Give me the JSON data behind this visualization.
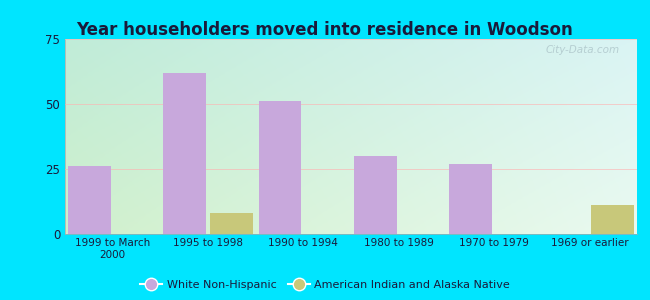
{
  "title": "Year householders moved into residence in Woodson",
  "categories": [
    "1999 to March\n2000",
    "1995 to 1998",
    "1990 to 1994",
    "1980 to 1989",
    "1970 to 1979",
    "1969 or earlier"
  ],
  "white_non_hispanic": [
    26,
    62,
    51,
    30,
    27,
    0
  ],
  "american_indian": [
    0,
    8,
    0,
    0,
    0,
    11
  ],
  "bar_color_white": "#c8a8dc",
  "bar_color_indian": "#c8c87a",
  "ylim": [
    0,
    75
  ],
  "yticks": [
    0,
    25,
    50,
    75
  ],
  "background_outer": "#00e5ff",
  "bg_color_topleft": "#c8f0e0",
  "bg_color_topright": "#e8f8f8",
  "bg_color_bottomleft": "#d8f0d0",
  "bg_color_bottomright": "#f5fff5",
  "grid_color": "#ffb0b0",
  "title_color": "#1a1a3a",
  "label_color": "#1a1a3a",
  "bar_width": 0.45,
  "legend_white": "White Non-Hispanic",
  "legend_indian": "American Indian and Alaska Native",
  "watermark": "City-Data.com"
}
